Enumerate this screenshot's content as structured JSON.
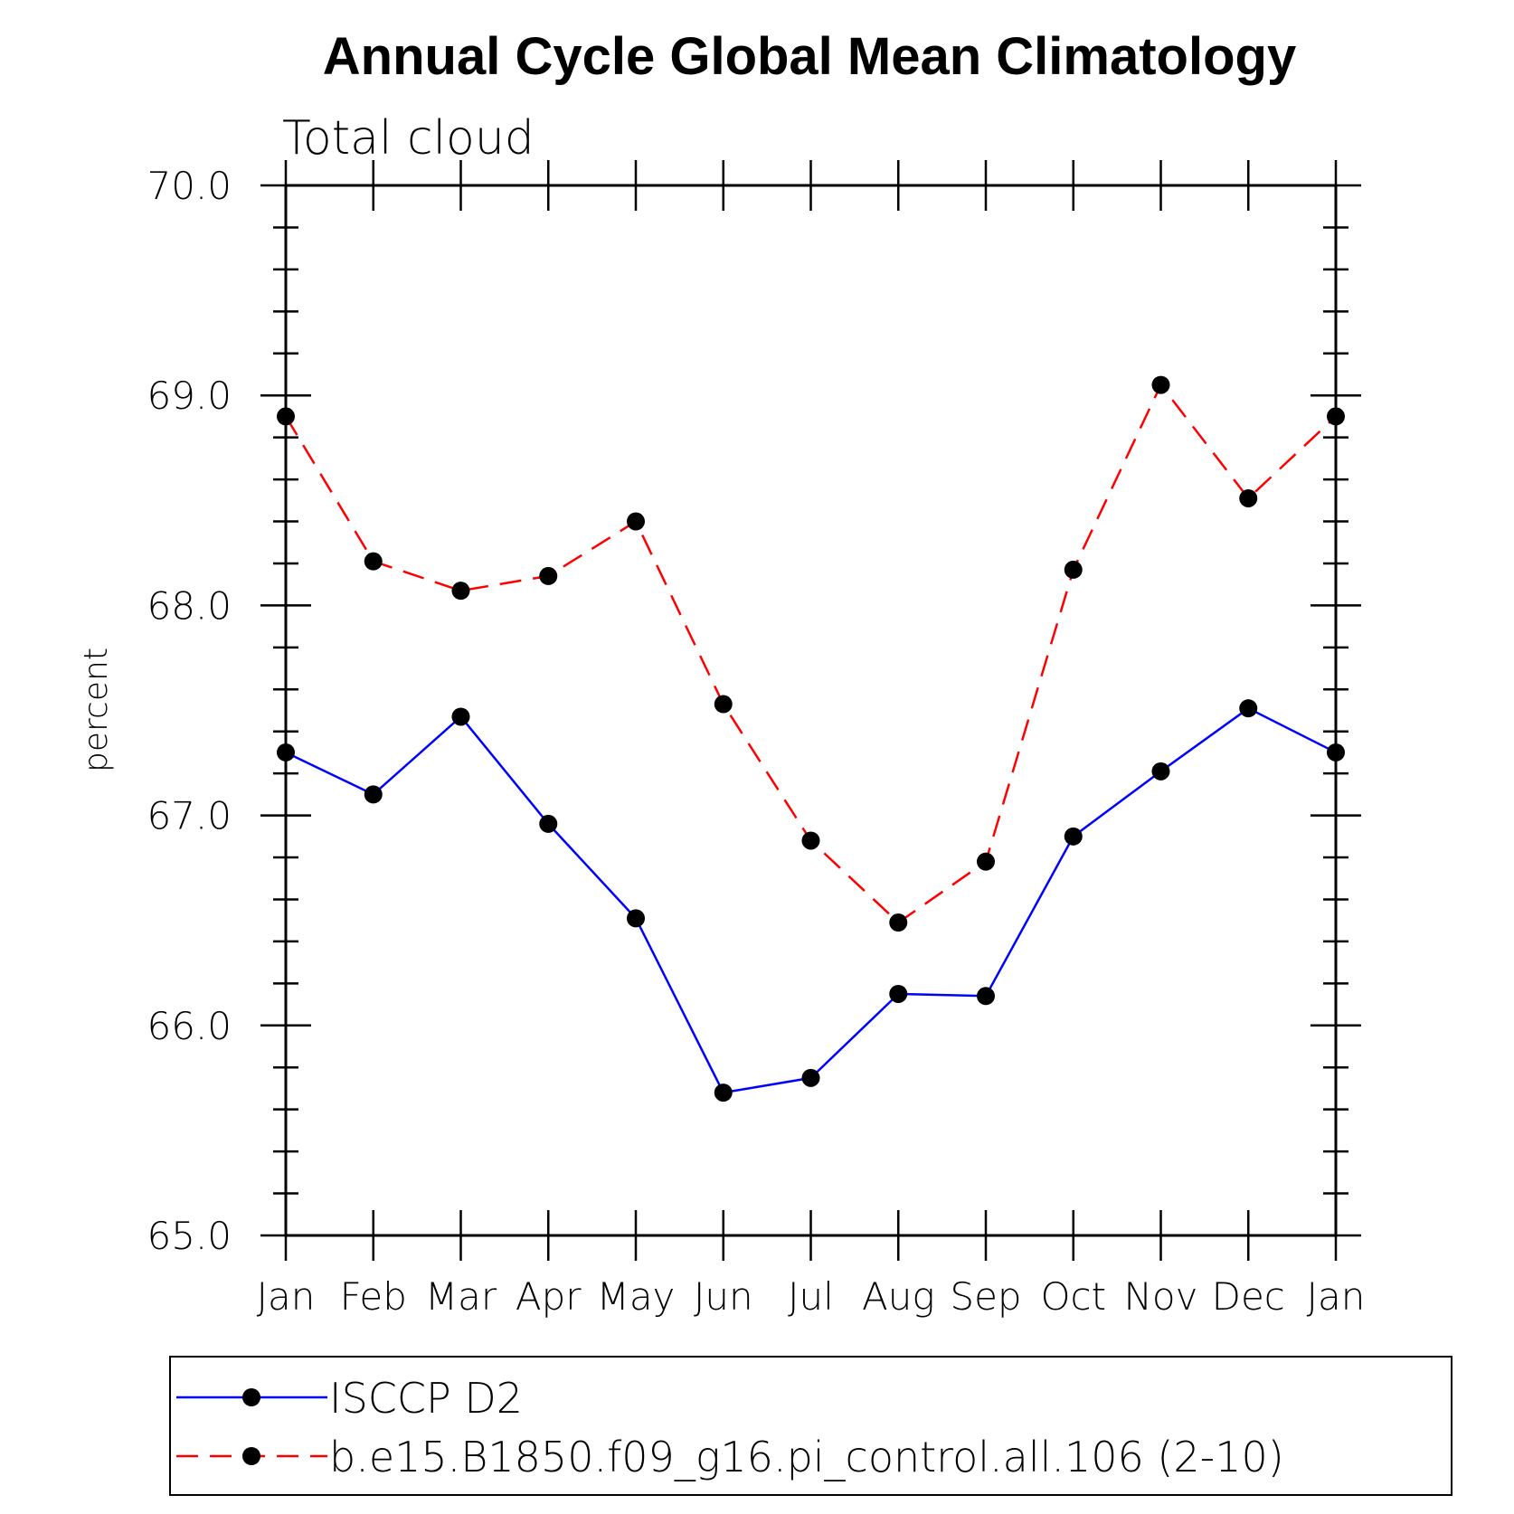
{
  "chart_data": {
    "type": "line",
    "title": "Annual Cycle Global Mean Climatology",
    "subtitle": "Total cloud",
    "xlabel": "",
    "ylabel": "percent",
    "categories": [
      "Jan",
      "Feb",
      "Mar",
      "Apr",
      "May",
      "Jun",
      "Jul",
      "Aug",
      "Sep",
      "Oct",
      "Nov",
      "Dec",
      "Jan"
    ],
    "ylim": [
      65.0,
      70.0
    ],
    "yticks": [
      "65.0",
      "66.0",
      "67.0",
      "68.0",
      "69.0",
      "70.0"
    ],
    "series": [
      {
        "name": "ISCCP D2",
        "color": "#0000ff",
        "style": "solid",
        "values": [
          67.3,
          67.1,
          67.47,
          66.96,
          66.51,
          65.68,
          65.75,
          66.15,
          66.14,
          66.9,
          67.21,
          67.51,
          67.3
        ]
      },
      {
        "name": "b.e15.B1850.f09_g16.pi_control.all.106 (2-10)",
        "color": "#ff0000",
        "style": "dashed",
        "values": [
          68.9,
          68.21,
          68.07,
          68.14,
          68.4,
          67.53,
          66.88,
          66.49,
          66.78,
          68.17,
          69.05,
          68.51,
          68.9
        ]
      }
    ],
    "legend_position": "bottom"
  }
}
